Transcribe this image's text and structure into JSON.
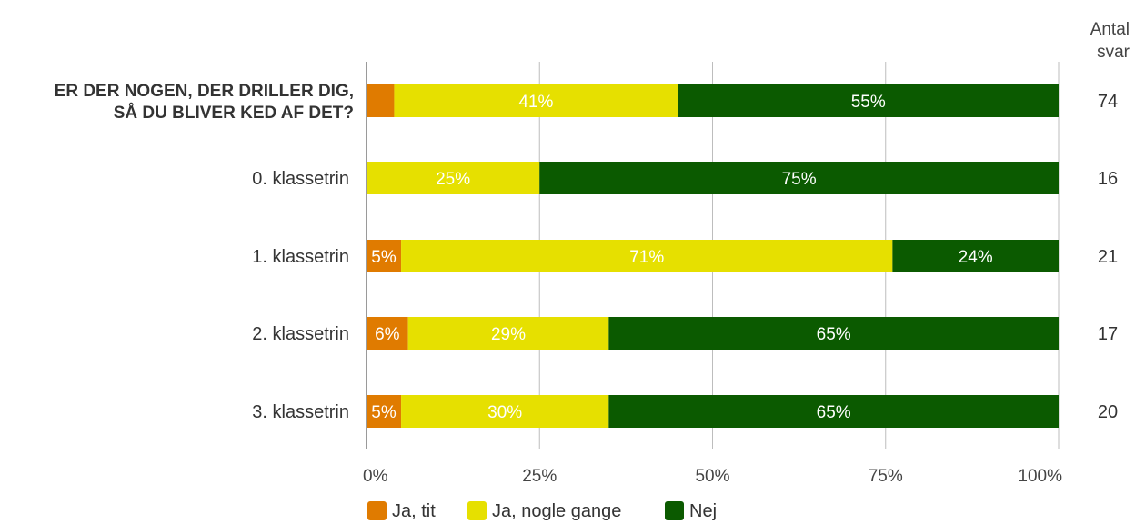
{
  "chart_data": {
    "type": "bar",
    "orientation": "horizontal",
    "stacked": true,
    "categories": [
      "ER DER NOGEN, DER DRILLER DIG, SÅ DU BLIVER KED AF DET?",
      "0. klassetrin",
      "1. klassetrin",
      "2. klassetrin",
      "3. klassetrin"
    ],
    "category_lines": [
      [
        "ER DER NOGEN, DER DRILLER DIG,",
        "SÅ DU BLIVER KED AF DET?"
      ],
      [
        "0. klassetrin"
      ],
      [
        "1. klassetrin"
      ],
      [
        "2. klassetrin"
      ],
      [
        "3. klassetrin"
      ]
    ],
    "series": [
      {
        "name": "Ja, tit",
        "color": "#e07b00",
        "values": [
          4,
          0,
          5,
          6,
          5
        ],
        "labels": [
          "",
          "",
          "5%",
          "6%",
          "5%"
        ]
      },
      {
        "name": "Ja, nogle gange",
        "color": "#e6e000",
        "values": [
          41,
          25,
          71,
          29,
          30
        ],
        "labels": [
          "41%",
          "25%",
          "71%",
          "29%",
          "30%"
        ]
      },
      {
        "name": "Nej",
        "color": "#0b5a00",
        "values": [
          55,
          75,
          24,
          65,
          65
        ],
        "labels": [
          "55%",
          "75%",
          "24%",
          "65%",
          "65%"
        ]
      }
    ],
    "xlim": [
      0,
      100
    ],
    "xticks": [
      "0%",
      "25%",
      "50%",
      "75%",
      "100%"
    ],
    "count_header": [
      "Antal",
      "svar"
    ],
    "counts": [
      "74",
      "16",
      "21",
      "17",
      "20"
    ],
    "grid": true,
    "legend_position": "bottom"
  }
}
